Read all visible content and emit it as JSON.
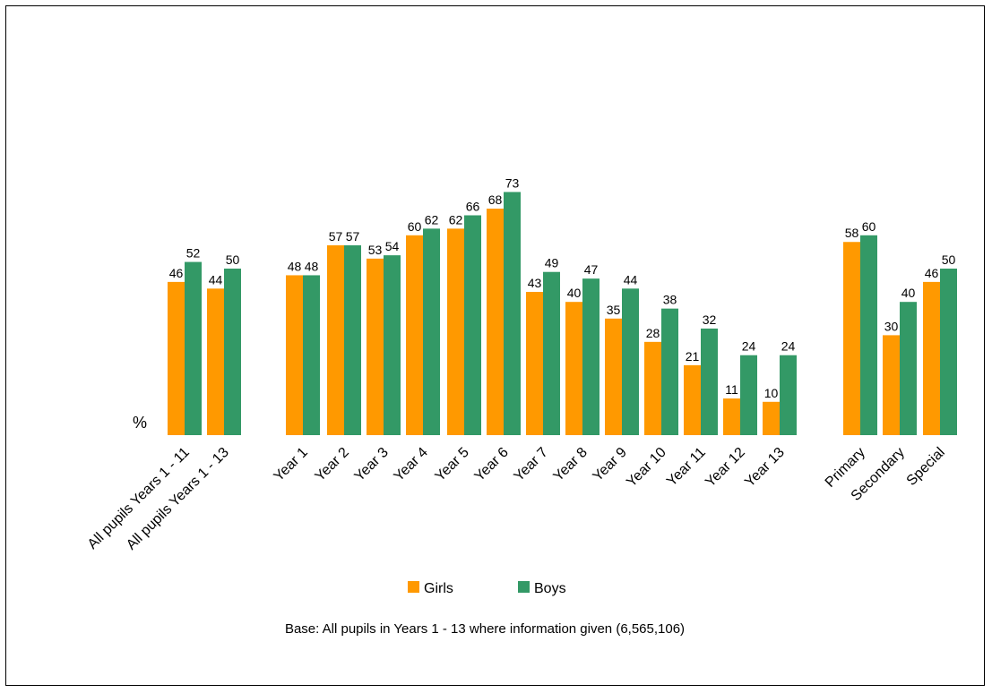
{
  "chart_data": {
    "type": "bar",
    "ylabel": "%",
    "ylim": [
      0,
      100
    ],
    "grid": false,
    "legend_position": "bottom",
    "categories": [
      "All pupils Years 1 - 11",
      "All pupils Years 1 - 13",
      "Year 1",
      "Year 2",
      "Year 3",
      "Year 4",
      "Year 5",
      "Year 6",
      "Year 7",
      "Year 8",
      "Year 9",
      "Year 10",
      "Year 11",
      "Year 12",
      "Year 13",
      "Primary",
      "Secondary",
      "Special"
    ],
    "series": [
      {
        "name": "Girls",
        "color": "#FF9900",
        "values": [
          46,
          44,
          48,
          57,
          53,
          60,
          62,
          68,
          43,
          40,
          35,
          28,
          21,
          11,
          10,
          58,
          30,
          46
        ]
      },
      {
        "name": "Boys",
        "color": "#339966",
        "values": [
          52,
          50,
          48,
          57,
          54,
          62,
          66,
          73,
          49,
          47,
          44,
          38,
          32,
          24,
          24,
          60,
          40,
          50
        ]
      }
    ],
    "note": "Base: All pupils in Years 1 - 13 where information given (6,565,106)"
  }
}
